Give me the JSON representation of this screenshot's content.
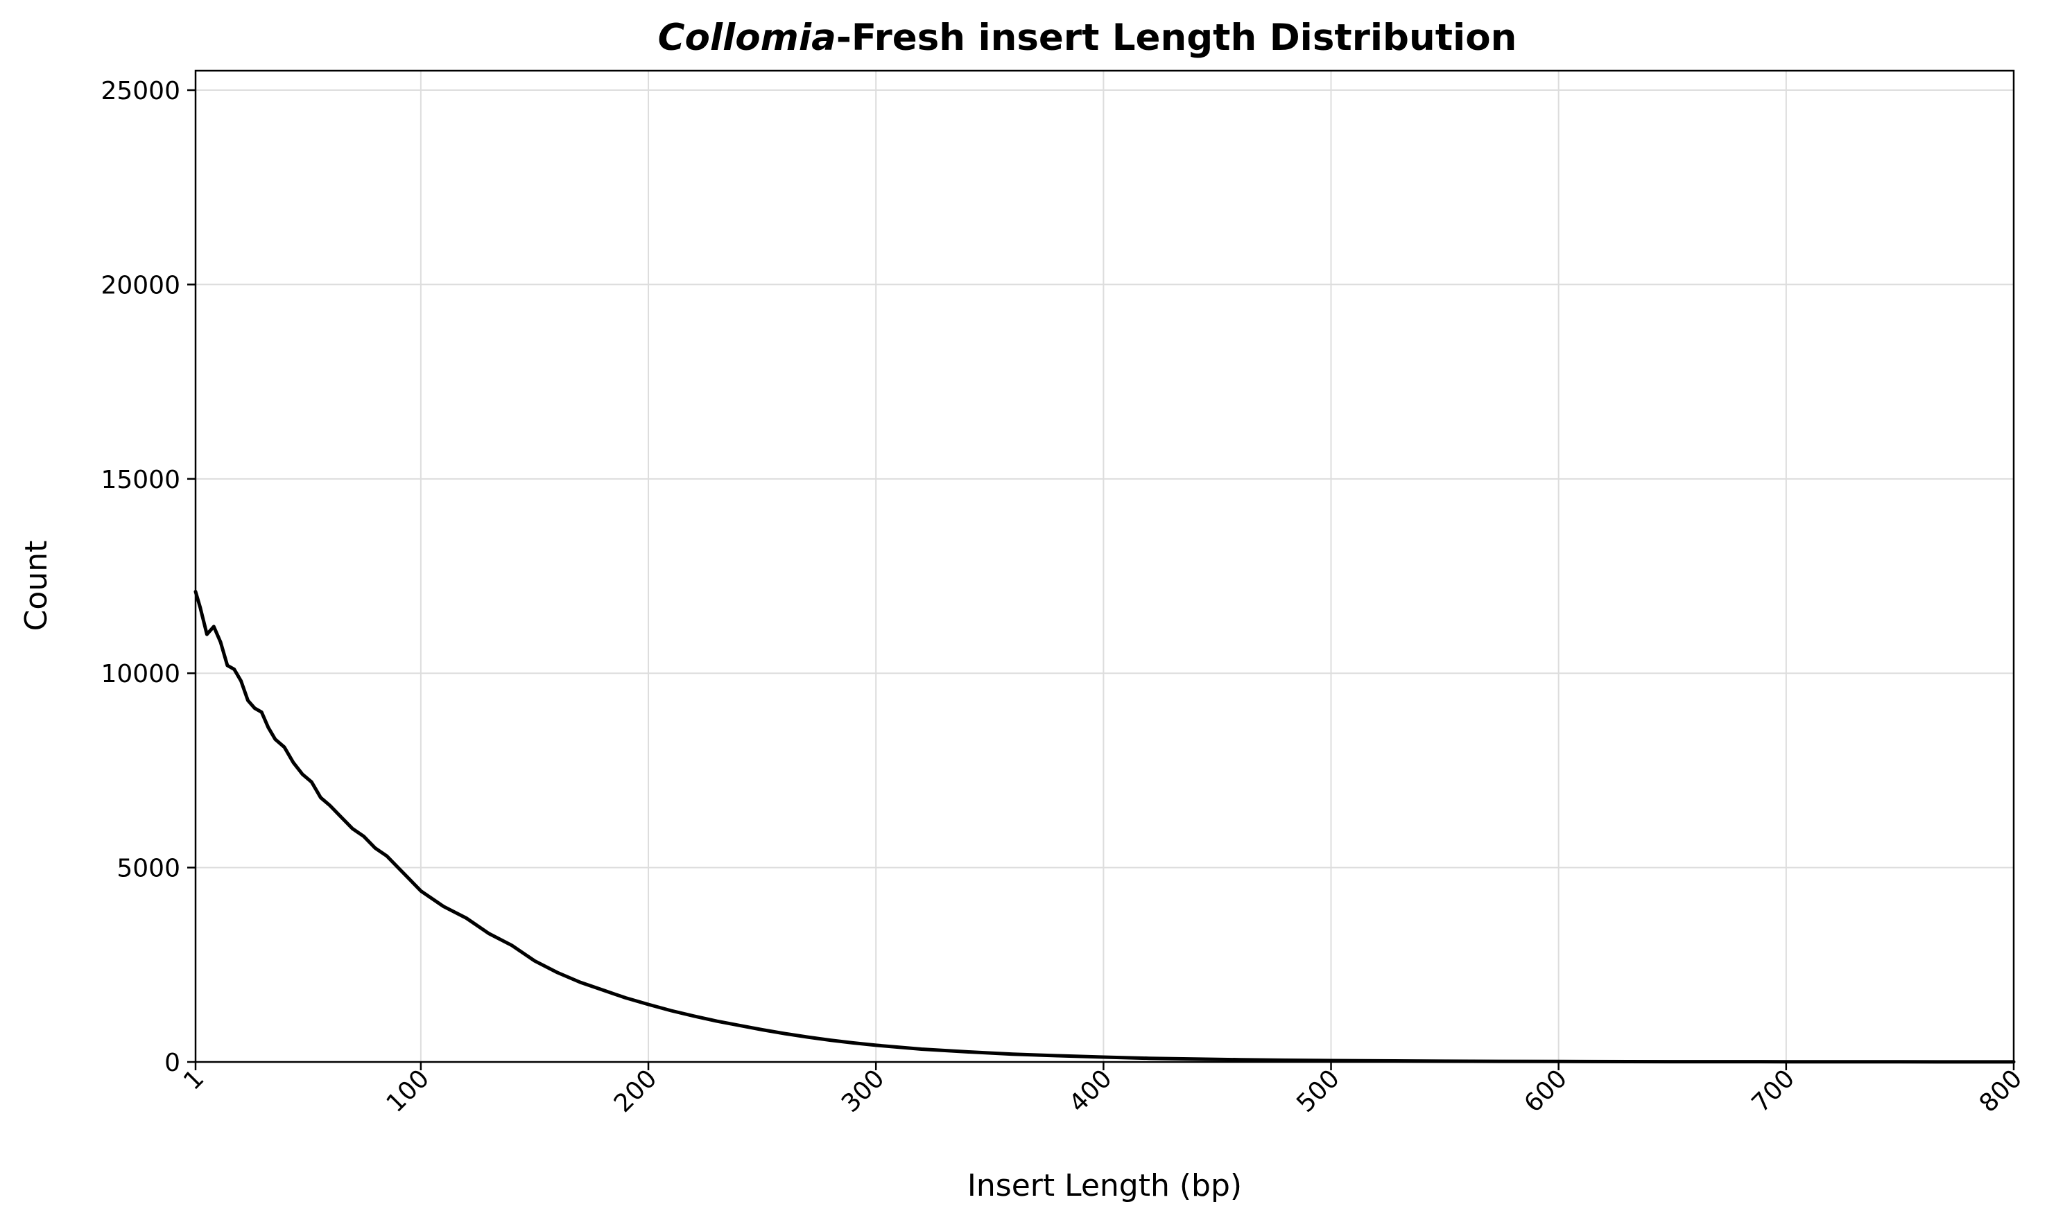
{
  "chart_data": {
    "type": "line",
    "title_italic": "Collomia",
    "title_rest": "-Fresh insert Length Distribution",
    "xlabel": "Insert Length (bp)",
    "ylabel": "Count",
    "xlim": [
      1,
      800
    ],
    "ylim": [
      0,
      25500
    ],
    "x_ticks": [
      1,
      100,
      200,
      300,
      400,
      500,
      600,
      700,
      800
    ],
    "x_tick_labels": [
      "1",
      "100",
      "200",
      "300",
      "400",
      "500",
      "600",
      "700",
      "800"
    ],
    "y_ticks": [
      0,
      5000,
      10000,
      15000,
      20000,
      25000
    ],
    "y_tick_labels": [
      "0",
      "5000",
      "10000",
      "15000",
      "20000",
      "25000"
    ],
    "grid": true,
    "legend": "none",
    "line_color": "#000000",
    "series": [
      {
        "x": [
          1,
          3,
          6,
          9,
          12,
          15,
          18,
          21,
          24,
          27,
          30,
          33,
          36,
          40,
          44,
          48,
          52,
          56,
          60,
          65,
          70,
          75,
          80,
          85,
          90,
          95,
          100,
          110,
          120,
          130,
          140,
          150,
          160,
          170,
          180,
          190,
          200,
          210,
          220,
          230,
          240,
          250,
          260,
          270,
          280,
          290,
          300,
          320,
          340,
          360,
          380,
          400,
          420,
          440,
          460,
          480,
          500,
          550,
          600,
          650,
          700,
          750,
          800
        ],
        "y": [
          12100,
          11700,
          11000,
          11200,
          10800,
          10200,
          10100,
          9800,
          9300,
          9100,
          9000,
          8600,
          8300,
          8100,
          7700,
          7400,
          7200,
          6800,
          6600,
          6300,
          6000,
          5800,
          5500,
          5300,
          5000,
          4700,
          4400,
          4000,
          3700,
          3300,
          3000,
          2600,
          2300,
          2050,
          1850,
          1650,
          1480,
          1320,
          1180,
          1050,
          940,
          830,
          730,
          640,
          560,
          490,
          430,
          330,
          260,
          200,
          160,
          125,
          95,
          75,
          58,
          45,
          35,
          20,
          12,
          8,
          5,
          3,
          2
        ]
      }
    ]
  }
}
